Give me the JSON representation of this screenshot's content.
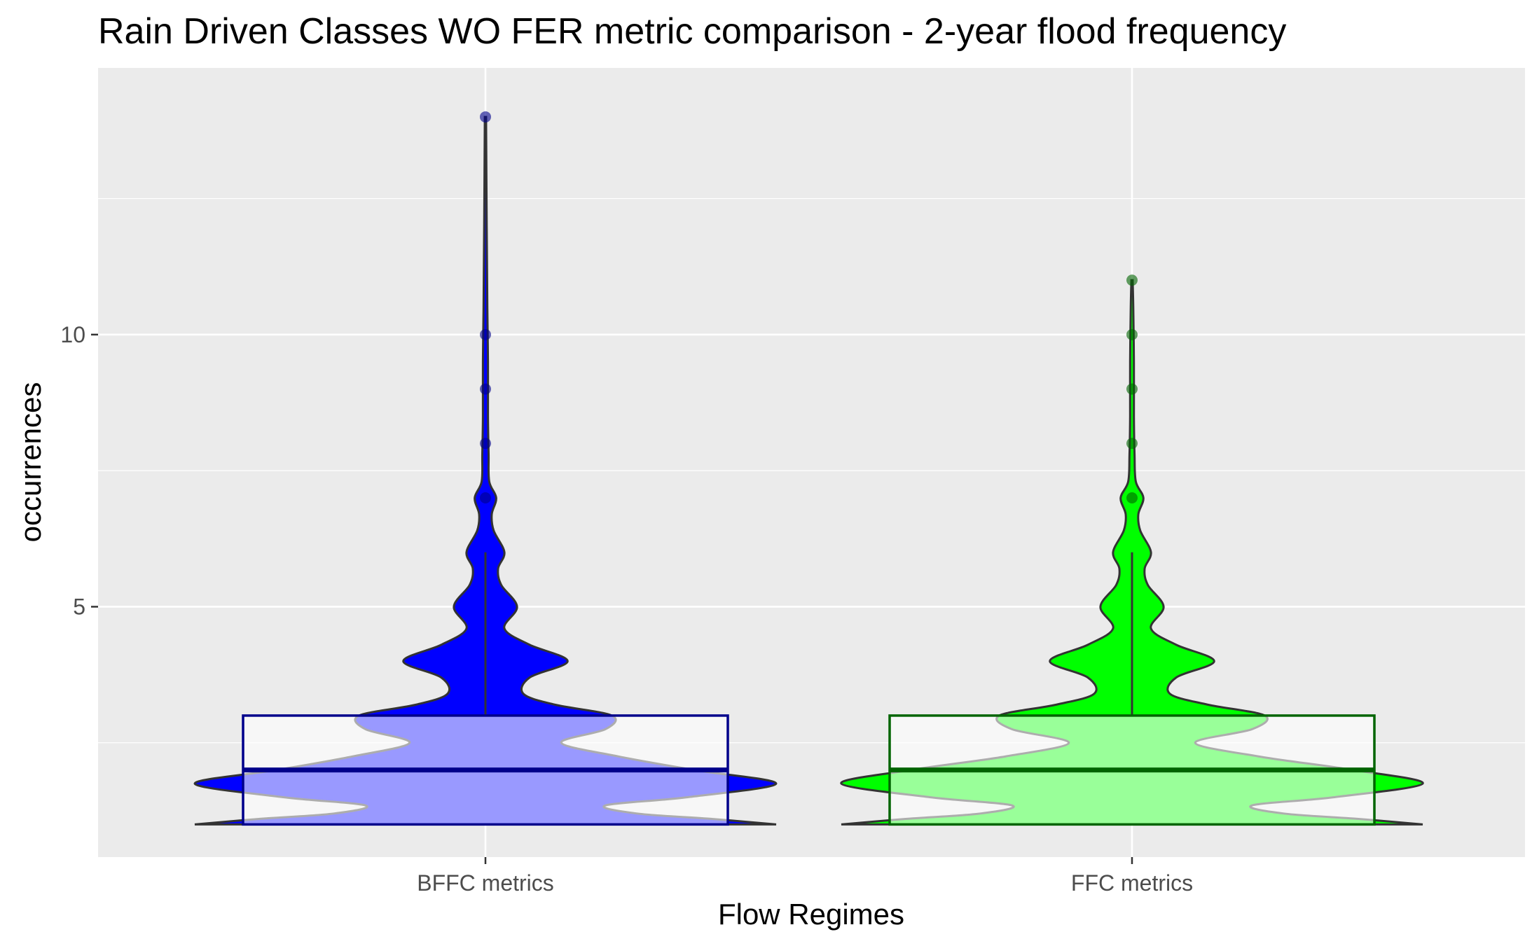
{
  "chart_data": {
    "type": "violin",
    "title": "Rain Driven Classes WO FER metric comparison  - 2-year flood frequency",
    "xlabel": "Flow Regimes",
    "ylabel": "occurrences",
    "categories": [
      "BFFC metrics",
      "FFC metrics"
    ],
    "ylim": [
      0.4,
      14.9
    ],
    "y_ticks": [
      5,
      10
    ],
    "grid": true,
    "legend": "none",
    "series": [
      {
        "category": "BFFC metrics",
        "fill_color": "#0000ff",
        "box_color": "#00008b",
        "box": {
          "min": 1,
          "q1": 1,
          "median": 2,
          "q3": 3,
          "max": 6
        },
        "outliers": [
          7,
          8,
          9,
          10,
          14
        ],
        "density": [
          [
            1.0,
            0.46
          ],
          [
            1.1,
            0.36
          ],
          [
            1.2,
            0.24
          ],
          [
            1.35,
            0.19
          ],
          [
            1.5,
            0.32
          ],
          [
            1.75,
            0.46
          ],
          [
            2.0,
            0.33
          ],
          [
            2.25,
            0.21
          ],
          [
            2.5,
            0.12
          ],
          [
            2.75,
            0.19
          ],
          [
            3.0,
            0.2
          ],
          [
            3.2,
            0.11
          ],
          [
            3.4,
            0.06
          ],
          [
            3.7,
            0.07
          ],
          [
            4.0,
            0.13
          ],
          [
            4.3,
            0.07
          ],
          [
            4.6,
            0.03
          ],
          [
            5.0,
            0.05
          ],
          [
            5.4,
            0.025
          ],
          [
            5.7,
            0.02
          ],
          [
            6.0,
            0.03
          ],
          [
            6.4,
            0.013
          ],
          [
            6.7,
            0.01
          ],
          [
            7.0,
            0.017
          ],
          [
            7.3,
            0.006
          ],
          [
            7.8,
            0.005
          ],
          [
            8.5,
            0.004
          ],
          [
            9.5,
            0.004
          ],
          [
            10.5,
            0.003
          ],
          [
            12.0,
            0.002
          ],
          [
            14.0,
            0.001
          ]
        ]
      },
      {
        "category": "FFC metrics",
        "fill_color": "#00ff00",
        "box_color": "#006400",
        "box": {
          "min": 1,
          "q1": 1,
          "median": 2,
          "q3": 3,
          "max": 6
        },
        "outliers": [
          7,
          8,
          9,
          10,
          11
        ],
        "density": [
          [
            1.0,
            0.46
          ],
          [
            1.1,
            0.36
          ],
          [
            1.2,
            0.24
          ],
          [
            1.35,
            0.19
          ],
          [
            1.5,
            0.32
          ],
          [
            1.75,
            0.46
          ],
          [
            2.0,
            0.35
          ],
          [
            2.25,
            0.2
          ],
          [
            2.5,
            0.1
          ],
          [
            2.75,
            0.19
          ],
          [
            3.0,
            0.21
          ],
          [
            3.2,
            0.12
          ],
          [
            3.4,
            0.06
          ],
          [
            3.7,
            0.07
          ],
          [
            4.0,
            0.13
          ],
          [
            4.3,
            0.07
          ],
          [
            4.6,
            0.03
          ],
          [
            5.0,
            0.05
          ],
          [
            5.4,
            0.025
          ],
          [
            5.7,
            0.02
          ],
          [
            6.0,
            0.03
          ],
          [
            6.4,
            0.013
          ],
          [
            6.7,
            0.01
          ],
          [
            7.0,
            0.018
          ],
          [
            7.3,
            0.006
          ],
          [
            7.8,
            0.004
          ],
          [
            8.5,
            0.003
          ],
          [
            9.5,
            0.003
          ],
          [
            10.5,
            0.002
          ],
          [
            11.0,
            0.001
          ]
        ]
      }
    ]
  }
}
